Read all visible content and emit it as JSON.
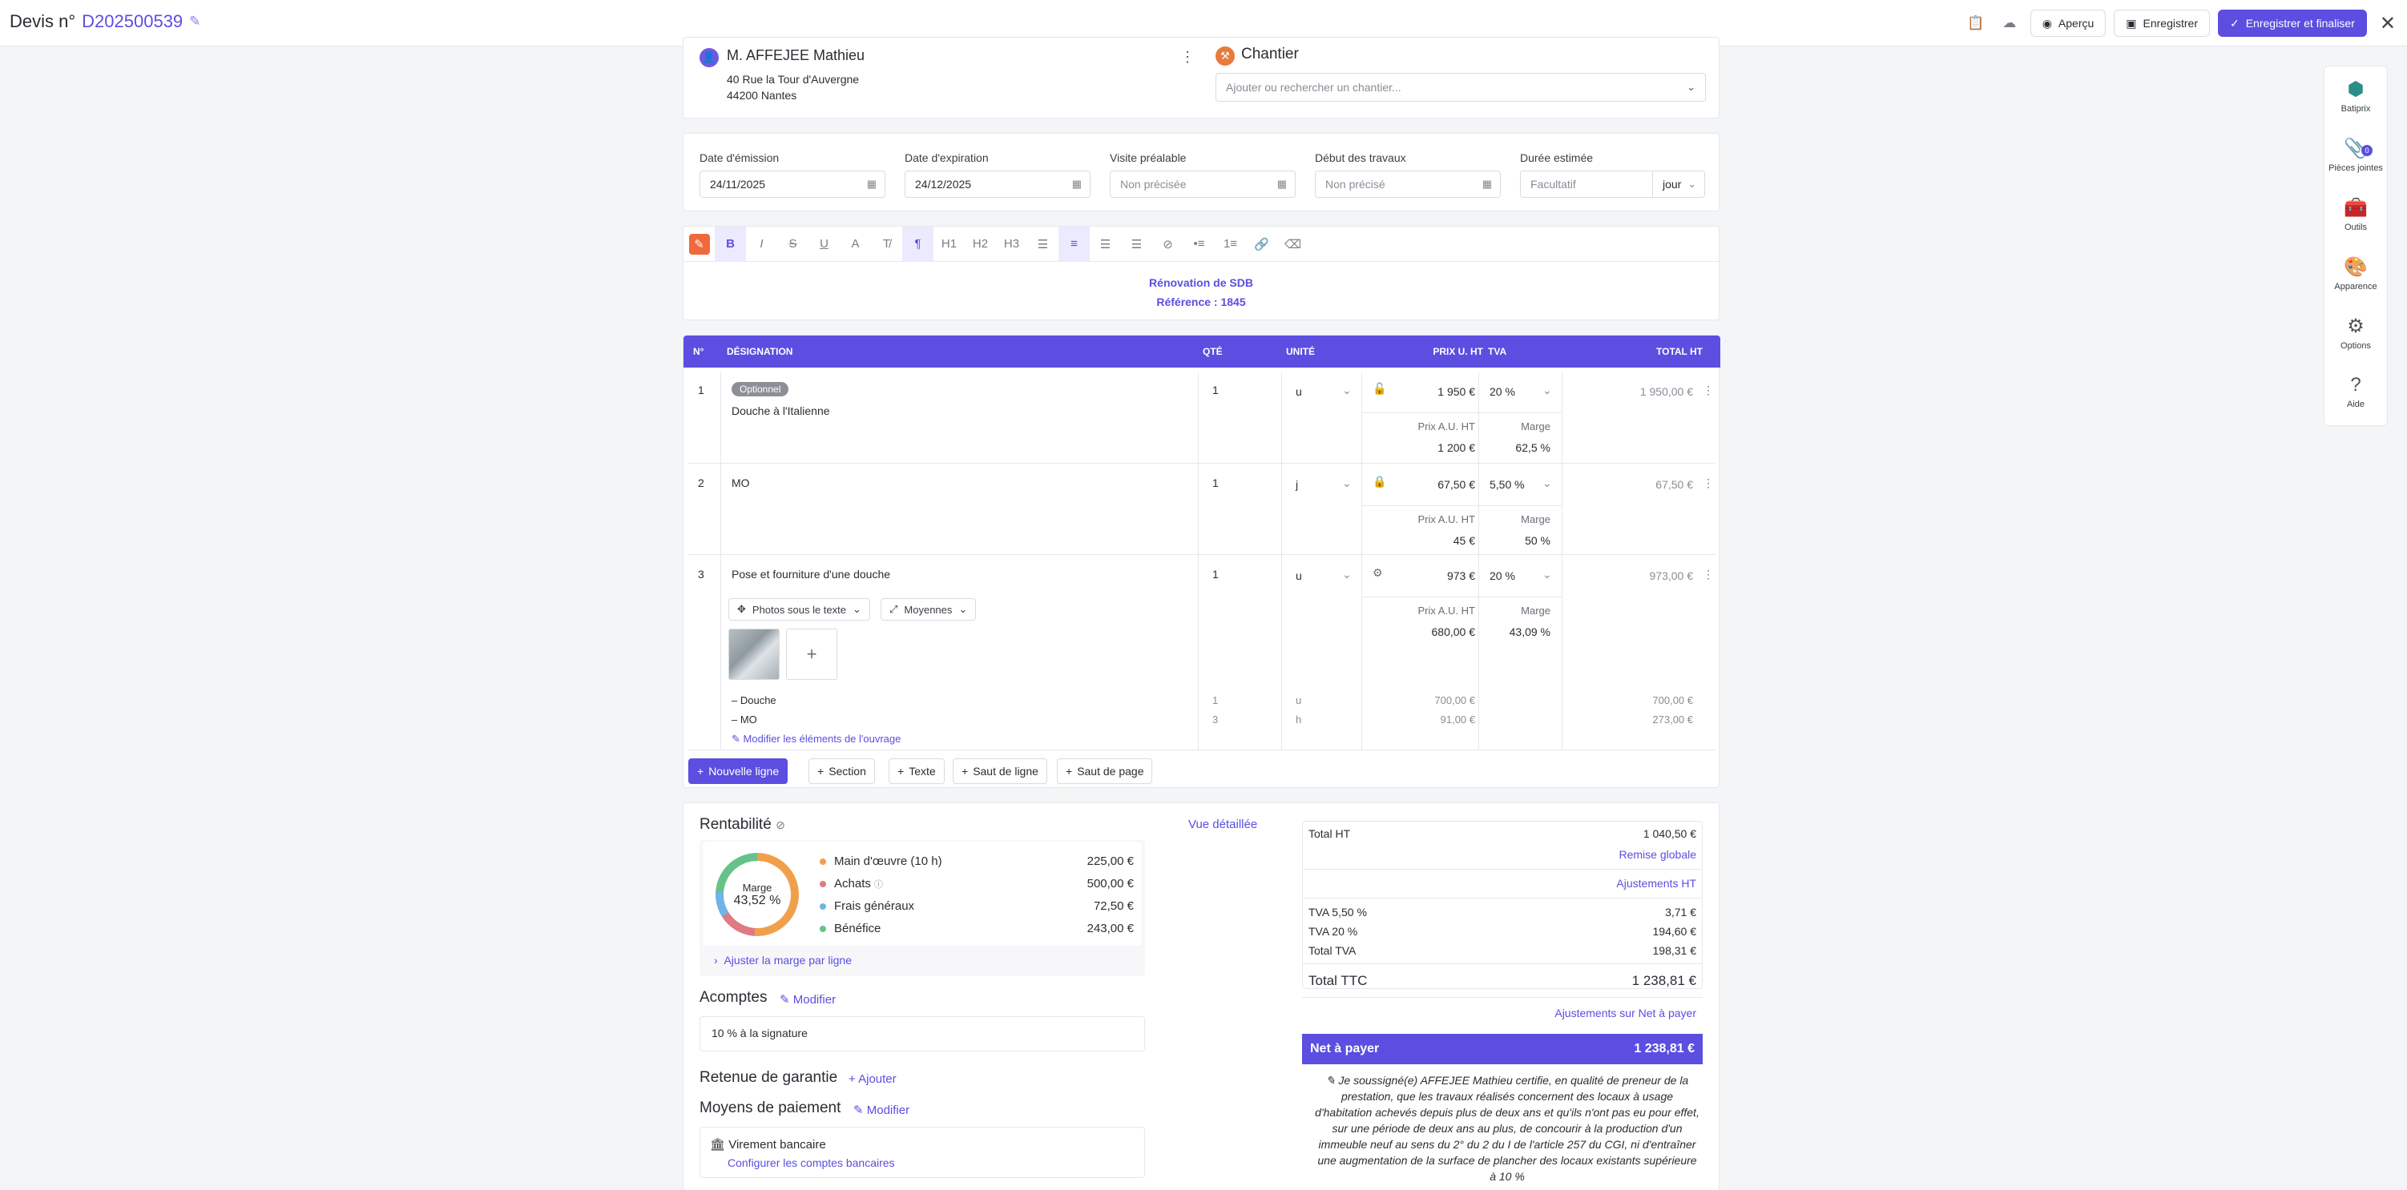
{
  "header": {
    "title_prefix": "Devis n°",
    "number": "D202500539",
    "apercu": "Aperçu",
    "save": "Enregistrer",
    "save_finalize": "Enregistrer et finaliser"
  },
  "client": {
    "name": "M. AFFEJEE Mathieu",
    "address1": "40 Rue la Tour d'Auvergne",
    "address2": "44200 Nantes"
  },
  "chantier": {
    "label": "Chantier",
    "placeholder": "Ajouter ou rechercher un chantier..."
  },
  "dates": {
    "emission_label": "Date d'émission",
    "emission_value": "24/11/2025",
    "expiration_label": "Date d'expiration",
    "expiration_value": "24/12/2025",
    "visite_label": "Visite préalable",
    "visite_value": "Non précisée",
    "debut_label": "Début des travaux",
    "debut_value": "Non précisé",
    "duree_label": "Durée estimée",
    "duree_value": "Facultatif",
    "duree_unit": "jour"
  },
  "editor": {
    "line1": "Rénovation de SDB",
    "line2": "Référence : 1845"
  },
  "table": {
    "headers": {
      "n": "N°",
      "designation": "DÉSIGNATION",
      "qte": "QTÉ",
      "unite": "UNITÉ",
      "prix": "PRIX U. HT",
      "tva": "TVA",
      "total": "TOTAL HT"
    },
    "rows": [
      {
        "n": "1",
        "badge": "Optionnel",
        "designation": "Douche à l'Italienne",
        "qte": "1",
        "unite": "u",
        "prix": "1 950 €",
        "tva": "20 %",
        "total": "1 950,00 €",
        "achat_label": "Prix A.U. HT",
        "achat": "1 200 €",
        "marge_label": "Marge",
        "marge": "62,5 %"
      },
      {
        "n": "2",
        "designation": "MO",
        "qte": "1",
        "unite": "j",
        "prix": "67,50 €",
        "tva": "5,50 %",
        "total": "67,50 €",
        "achat_label": "Prix A.U. HT",
        "achat": "45 €",
        "marge_label": "Marge",
        "marge": "50 %"
      },
      {
        "n": "3",
        "designation": "Pose et fourniture d'une douche",
        "qte": "1",
        "unite": "u",
        "prix": "973 €",
        "tva": "20 %",
        "total": "973,00 €",
        "achat_label": "Prix A.U. HT",
        "achat": "680,00 €",
        "marge_label": "Marge",
        "marge": "43,09 %"
      }
    ],
    "photo_layout": "Photos sous le texte",
    "photo_size": "Moyennes",
    "sub_items": [
      {
        "name": "– Douche",
        "qte": "1",
        "unite": "u",
        "prix": "700,00 €",
        "total": "700,00 €"
      },
      {
        "name": "– MO",
        "qte": "3",
        "unite": "h",
        "prix": "91,00 €",
        "total": "273,00 €"
      }
    ],
    "modify_ouvrage": "Modifier les éléments de l'ouvrage"
  },
  "actions": {
    "new_line": "Nouvelle ligne",
    "section": "Section",
    "texte": "Texte",
    "saut_ligne": "Saut de ligne",
    "saut_page": "Saut de page"
  },
  "rentabilite": {
    "title": "Rentabilité",
    "vue": "Vue détaillée",
    "marge_label": "Marge",
    "marge_value": "43,52 %",
    "items": [
      {
        "label": "Main d'œuvre (10 h)",
        "value": "225,00 €",
        "color": "#f0a04b"
      },
      {
        "label": "Achats",
        "value": "500,00 €",
        "color": "#e07a82"
      },
      {
        "label": "Frais généraux",
        "value": "72,50 €",
        "color": "#6fb4e6"
      },
      {
        "label": "Bénéfice",
        "value": "243,00 €",
        "color": "#66c28a"
      }
    ],
    "adjust": "Ajuster la marge par ligne"
  },
  "acomptes": {
    "title": "Acomptes",
    "modify": "Modifier",
    "value": "10 % à la signature"
  },
  "retenue": {
    "title": "Retenue de garantie",
    "add": "Ajouter"
  },
  "paiement": {
    "title": "Moyens de paiement",
    "modify": "Modifier",
    "method": "Virement bancaire",
    "configure": "Configurer les comptes bancaires"
  },
  "totals": {
    "total_ht_label": "Total HT",
    "total_ht": "1 040,50 €",
    "remise": "Remise globale",
    "ajustements_ht": "Ajustements HT",
    "tva55_label": "TVA 5,50 %",
    "tva55": "3,71 €",
    "tva20_label": "TVA 20 %",
    "tva20": "194,60 €",
    "total_tva_label": "Total TVA",
    "total_tva": "198,31 €",
    "ttc_label": "Total TTC",
    "ttc": "1 238,81 €",
    "ajust_net": "Ajustements sur Net à payer",
    "net_label": "Net à payer",
    "net": "1 238,81 €",
    "notice": "Je soussigné(e) AFFEJEE Mathieu certifie, en qualité de preneur de la prestation, que les travaux réalisés concernent des locaux à usage d'habitation achevés depuis plus de deux ans et qu'ils n'ont pas eu pour effet, sur une période de deux ans au plus, de concourir à la production d'un immeuble neuf au sens du 2° du 2 du I de l'article 257 du CGI, ni d'entraîner une augmentation de la surface de plancher des locaux existants supérieure à 10 %"
  },
  "sidebar": {
    "items": [
      "Batiprix",
      "Pièces jointes",
      "Outils",
      "Apparence",
      "Options",
      "Aide"
    ],
    "attachments_count": "0"
  }
}
